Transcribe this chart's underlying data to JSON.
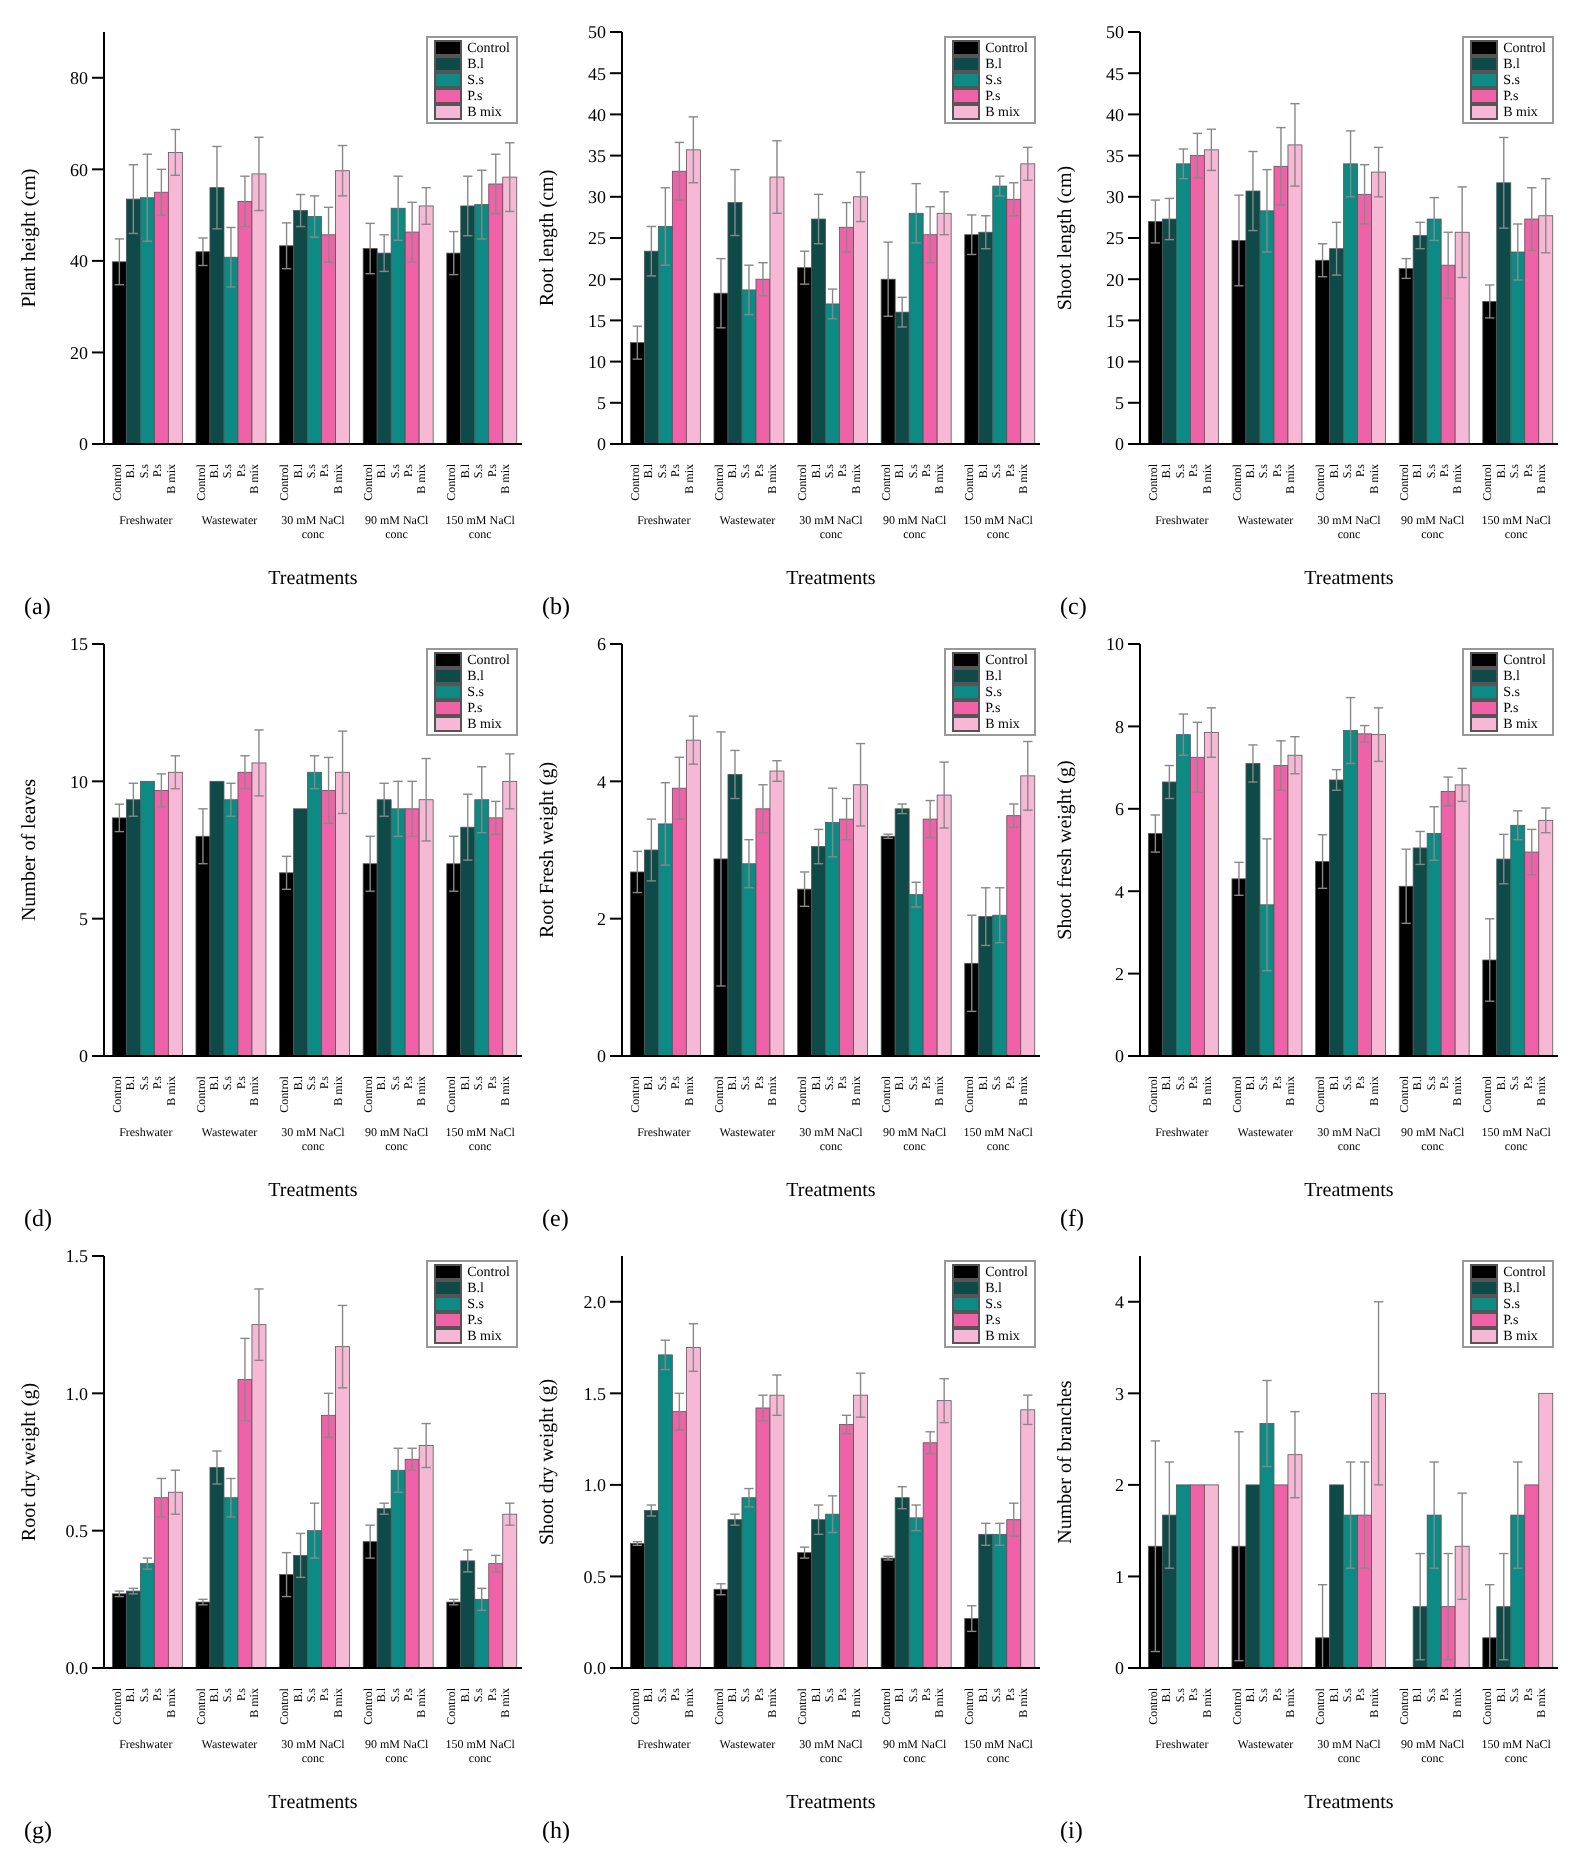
{
  "chart_data": [
    {
      "type": "bar",
      "ylabel": "Plant height (cm)",
      "xlabel": "Treatments",
      "annotations": [
        "(a)"
      ],
      "legend": "top right",
      "ylim": [
        0,
        90
      ],
      "yticks": [
        0,
        20,
        40,
        60,
        80
      ],
      "categories": [
        "Freshwater",
        "Wastewater",
        "30 mM NaCl conc",
        "90 mM NaCl conc",
        "150 mM NaCl conc"
      ],
      "series": [
        {
          "name": "Control",
          "color": "#000000",
          "values": [
            39.8,
            42,
            43.3,
            42.7,
            41.7
          ],
          "errors": [
            5,
            3,
            5,
            5.5,
            4.7
          ]
        },
        {
          "name": "B.l",
          "color": "#0d4a48",
          "values": [
            53.5,
            56,
            51,
            41.7,
            52
          ],
          "errors": [
            7.5,
            9,
            3.5,
            4,
            6.5
          ]
        },
        {
          "name": "S.s",
          "color": "#0e8a85",
          "values": [
            53.8,
            40.8,
            49.7,
            51.5,
            52.3
          ],
          "errors": [
            9.5,
            6.5,
            4.5,
            7,
            7.5
          ]
        },
        {
          "name": "P.s",
          "color": "#f062a8",
          "values": [
            55,
            53,
            45.7,
            46.3,
            56.8
          ],
          "errors": [
            5,
            5.5,
            6,
            6.5,
            6.5
          ]
        },
        {
          "name": "B mix",
          "color": "#f7b8d6",
          "values": [
            63.7,
            59,
            59.7,
            52,
            58.3
          ],
          "errors": [
            5,
            8,
            5.5,
            4,
            7.5
          ]
        }
      ]
    },
    {
      "type": "bar",
      "ylabel": "Root length (cm)",
      "xlabel": "Treatments",
      "annotations": [
        "(b)"
      ],
      "legend": "top right",
      "ylim": [
        0,
        50
      ],
      "yticks": [
        0,
        5,
        10,
        15,
        20,
        25,
        30,
        35,
        40,
        45,
        50
      ],
      "categories": [
        "Freshwater",
        "Wastewater",
        "30 mM NaCl conc",
        "90 mM NaCl conc",
        "150 mM NaCl conc"
      ],
      "series": [
        {
          "name": "Control",
          "color": "#000000",
          "values": [
            12.3,
            18.3,
            21.4,
            20,
            25.4
          ],
          "errors": [
            2,
            4.2,
            2,
            4.5,
            2.4
          ]
        },
        {
          "name": "B.l",
          "color": "#0d4a48",
          "values": [
            23.4,
            29.3,
            27.3,
            16,
            25.7
          ],
          "errors": [
            3,
            4,
            3,
            1.8,
            2
          ]
        },
        {
          "name": "S.s",
          "color": "#0e8a85",
          "values": [
            26.4,
            18.7,
            17,
            28,
            31.3
          ],
          "errors": [
            4.7,
            3,
            1.8,
            3.6,
            1.2
          ]
        },
        {
          "name": "P.s",
          "color": "#f062a8",
          "values": [
            33.1,
            20,
            26.3,
            25.4,
            29.7
          ],
          "errors": [
            3.5,
            2,
            3,
            3.4,
            2
          ]
        },
        {
          "name": "B mix",
          "color": "#f7b8d6",
          "values": [
            35.7,
            32.4,
            30,
            28,
            34
          ],
          "errors": [
            4,
            4.4,
            3,
            2.6,
            2
          ]
        }
      ]
    },
    {
      "type": "bar",
      "ylabel": "Shoot length (cm)",
      "xlabel": "Treatments",
      "annotations": [
        "(c)"
      ],
      "legend": "top right",
      "ylim": [
        0,
        50
      ],
      "yticks": [
        0,
        5,
        10,
        15,
        20,
        25,
        30,
        35,
        40,
        45,
        50
      ],
      "categories": [
        "Freshwater",
        "Wastewater",
        "30 mM NaCl conc",
        "90 mM NaCl conc",
        "150 mM NaCl conc"
      ],
      "series": [
        {
          "name": "Control",
          "color": "#000000",
          "values": [
            27,
            24.7,
            22.3,
            21.3,
            17.3
          ],
          "errors": [
            2.6,
            5.5,
            2,
            1.2,
            2
          ]
        },
        {
          "name": "B.l",
          "color": "#0d4a48",
          "values": [
            27.3,
            30.7,
            23.7,
            25.3,
            31.7
          ],
          "errors": [
            2.5,
            4.8,
            3.2,
            1.6,
            5.5
          ]
        },
        {
          "name": "S.s",
          "color": "#0e8a85",
          "values": [
            34,
            28.3,
            34,
            27.3,
            23.3
          ],
          "errors": [
            1.8,
            5,
            4,
            2.6,
            3.4
          ]
        },
        {
          "name": "P.s",
          "color": "#f062a8",
          "values": [
            35,
            33.7,
            30.3,
            21.7,
            27.3
          ],
          "errors": [
            2.7,
            4.7,
            3.6,
            4,
            3.8
          ]
        },
        {
          "name": "B mix",
          "color": "#f7b8d6",
          "values": [
            35.7,
            36.3,
            33,
            25.7,
            27.7
          ],
          "errors": [
            2.5,
            5,
            3,
            5.5,
            4.5
          ]
        }
      ]
    },
    {
      "type": "bar",
      "ylabel": "Number of leaves",
      "xlabel": "Treatments",
      "annotations": [
        "(d)"
      ],
      "legend": "top right",
      "ylim": [
        0,
        15
      ],
      "yticks": [
        0,
        5,
        10,
        15
      ],
      "categories": [
        "Freshwater",
        "Wastewater",
        "30 mM NaCl conc",
        "90 mM NaCl conc",
        "150 mM NaCl conc"
      ],
      "series": [
        {
          "name": "Control",
          "color": "#000000",
          "values": [
            8.67,
            8,
            6.67,
            7,
            7
          ],
          "errors": [
            0.5,
            1,
            0.6,
            1,
            1
          ]
        },
        {
          "name": "B.l",
          "color": "#0d4a48",
          "values": [
            9.33,
            10,
            9,
            9.33,
            8.33
          ],
          "errors": [
            0.6,
            null,
            null,
            0.6,
            1.2
          ]
        },
        {
          "name": "S.s",
          "color": "#0e8a85",
          "values": [
            10,
            9.33,
            10.33,
            9,
            9.33
          ],
          "errors": [
            null,
            0.6,
            0.6,
            1,
            1.2
          ]
        },
        {
          "name": "P.s",
          "color": "#f062a8",
          "values": [
            9.67,
            10.33,
            9.67,
            9,
            8.67
          ],
          "errors": [
            0.6,
            0.6,
            1.2,
            1,
            0.6
          ]
        },
        {
          "name": "B mix",
          "color": "#f7b8d6",
          "values": [
            10.33,
            10.67,
            10.33,
            9.33,
            10
          ],
          "errors": [
            0.6,
            1.2,
            1.5,
            1.5,
            1
          ]
        }
      ]
    },
    {
      "type": "bar",
      "ylabel": "Root Fresh weight (g)",
      "xlabel": "Treatments",
      "annotations": [
        "(e)"
      ],
      "legend": "top right",
      "ylim": [
        0,
        6
      ],
      "yticks": [
        0,
        2,
        4,
        6
      ],
      "categories": [
        "Freshwater",
        "Wastewater",
        "30 mM NaCl conc",
        "90 mM NaCl conc",
        "150 mM NaCl conc"
      ],
      "series": [
        {
          "name": "Control",
          "color": "#000000",
          "values": [
            2.68,
            2.87,
            2.43,
            3.2,
            1.35
          ],
          "errors": [
            0.3,
            1.85,
            0.25,
            0.03,
            0.7
          ]
        },
        {
          "name": "B.l",
          "color": "#0d4a48",
          "values": [
            3,
            4.1,
            3.05,
            3.6,
            2.03
          ],
          "errors": [
            0.45,
            0.35,
            0.25,
            0.07,
            0.42
          ]
        },
        {
          "name": "S.s",
          "color": "#0e8a85",
          "values": [
            3.38,
            2.8,
            3.4,
            2.35,
            2.05
          ],
          "errors": [
            0.6,
            0.35,
            0.5,
            0.18,
            0.4
          ]
        },
        {
          "name": "P.s",
          "color": "#f062a8",
          "values": [
            3.9,
            3.6,
            3.45,
            3.45,
            3.5
          ],
          "errors": [
            0.45,
            0.35,
            0.3,
            0.27,
            0.17
          ]
        },
        {
          "name": "B mix",
          "color": "#f7b8d6",
          "values": [
            4.6,
            4.15,
            3.95,
            3.8,
            4.08
          ],
          "errors": [
            0.35,
            0.15,
            0.6,
            0.48,
            0.5
          ]
        }
      ]
    },
    {
      "type": "bar",
      "ylabel": "Shoot fresh weight (g)",
      "xlabel": "Treatments",
      "annotations": [
        "(f)"
      ],
      "legend": "top right",
      "ylim": [
        0,
        10
      ],
      "yticks": [
        0,
        2,
        4,
        6,
        8,
        10
      ],
      "categories": [
        "Freshwater",
        "Wastewater",
        "30 mM NaCl conc",
        "90 mM NaCl conc",
        "150 mM NaCl conc"
      ],
      "series": [
        {
          "name": "Control",
          "color": "#000000",
          "values": [
            5.4,
            4.3,
            4.72,
            4.12,
            2.33
          ],
          "errors": [
            0.45,
            0.4,
            0.65,
            0.9,
            1
          ]
        },
        {
          "name": "B.l",
          "color": "#0d4a48",
          "values": [
            6.65,
            7.1,
            6.7,
            5.05,
            4.78
          ],
          "errors": [
            0.4,
            0.45,
            0.25,
            0.4,
            0.6
          ]
        },
        {
          "name": "S.s",
          "color": "#0e8a85",
          "values": [
            7.8,
            3.67,
            7.9,
            5.4,
            5.6
          ],
          "errors": [
            0.5,
            1.6,
            0.8,
            0.65,
            0.35
          ]
        },
        {
          "name": "P.s",
          "color": "#f062a8",
          "values": [
            7.25,
            7.05,
            7.82,
            6.42,
            4.95
          ],
          "errors": [
            0.85,
            0.6,
            0.2,
            0.35,
            0.55
          ]
        },
        {
          "name": "B mix",
          "color": "#f7b8d6",
          "values": [
            7.85,
            7.3,
            7.8,
            6.58,
            5.72
          ],
          "errors": [
            0.6,
            0.45,
            0.65,
            0.4,
            0.3
          ]
        }
      ]
    },
    {
      "type": "bar",
      "ylabel": "Root dry weight (g)",
      "xlabel": "Treatments",
      "annotations": [
        "(g)"
      ],
      "legend": "top right",
      "ylim": [
        0,
        1.5
      ],
      "yticks": [
        {
          "value": 0,
          "label": "0.0"
        },
        {
          "value": 0.5,
          "label": "0.5"
        },
        {
          "value": 1,
          "label": "1.0"
        },
        {
          "value": 1.5,
          "label": "1.5"
        }
      ],
      "categories": [
        "Freshwater",
        "Wastewater",
        "30 mM NaCl conc",
        "90 mM NaCl conc",
        "150 mM NaCl conc"
      ],
      "series": [
        {
          "name": "Control",
          "color": "#000000",
          "values": [
            0.27,
            0.24,
            0.34,
            0.46,
            0.24
          ],
          "errors": [
            0.01,
            0.01,
            0.08,
            0.06,
            0.01
          ]
        },
        {
          "name": "B.l",
          "color": "#0d4a48",
          "values": [
            0.28,
            0.73,
            0.41,
            0.58,
            0.39
          ],
          "errors": [
            0.01,
            0.06,
            0.08,
            0.02,
            0.04
          ]
        },
        {
          "name": "S.s",
          "color": "#0e8a85",
          "values": [
            0.38,
            0.62,
            0.5,
            0.72,
            0.25
          ],
          "errors": [
            0.02,
            0.07,
            0.1,
            0.08,
            0.04
          ]
        },
        {
          "name": "P.s",
          "color": "#f062a8",
          "values": [
            0.62,
            1.05,
            0.92,
            0.76,
            0.38
          ],
          "errors": [
            0.07,
            0.15,
            0.08,
            0.04,
            0.03
          ]
        },
        {
          "name": "B mix",
          "color": "#f7b8d6",
          "values": [
            0.64,
            1.25,
            1.17,
            0.81,
            0.56
          ],
          "errors": [
            0.08,
            0.13,
            0.15,
            0.08,
            0.04
          ]
        }
      ]
    },
    {
      "type": "bar",
      "ylabel": "Shoot dry weight (g)",
      "xlabel": "Treatments",
      "annotations": [
        "(h)"
      ],
      "legend": "top right",
      "ylim": [
        0,
        2.25
      ],
      "yticks": [
        {
          "value": 0,
          "label": "0.0"
        },
        {
          "value": 0.5,
          "label": "0.5"
        },
        {
          "value": 1,
          "label": "1.0"
        },
        {
          "value": 1.5,
          "label": "1.5"
        },
        {
          "value": 2,
          "label": "2.0"
        }
      ],
      "categories": [
        "Freshwater",
        "Wastewater",
        "30 mM NaCl conc",
        "90 mM NaCl conc",
        "150 mM NaCl conc"
      ],
      "series": [
        {
          "name": "Control",
          "color": "#000000",
          "values": [
            0.68,
            0.43,
            0.63,
            0.6,
            0.27
          ],
          "errors": [
            0.01,
            0.03,
            0.03,
            0.01,
            0.07
          ]
        },
        {
          "name": "B.l",
          "color": "#0d4a48",
          "values": [
            0.86,
            0.81,
            0.81,
            0.93,
            0.73
          ],
          "errors": [
            0.03,
            0.03,
            0.08,
            0.06,
            0.06
          ]
        },
        {
          "name": "S.s",
          "color": "#0e8a85",
          "values": [
            1.71,
            0.93,
            0.84,
            0.82,
            0.73
          ],
          "errors": [
            0.08,
            0.05,
            0.1,
            0.07,
            0.06
          ]
        },
        {
          "name": "P.s",
          "color": "#f062a8",
          "values": [
            1.4,
            1.42,
            1.33,
            1.23,
            0.81
          ],
          "errors": [
            0.1,
            0.07,
            0.05,
            0.06,
            0.09
          ]
        },
        {
          "name": "B mix",
          "color": "#f7b8d6",
          "values": [
            1.75,
            1.49,
            1.49,
            1.46,
            1.41
          ],
          "errors": [
            0.13,
            0.11,
            0.12,
            0.12,
            0.08
          ]
        }
      ]
    },
    {
      "type": "bar",
      "ylabel": "Number of branches",
      "xlabel": "Treatments",
      "annotations": [
        "(i)"
      ],
      "legend": "top right",
      "ylim": [
        0,
        4.5
      ],
      "yticks": [
        0,
        1,
        2,
        3,
        4
      ],
      "categories": [
        "Freshwater",
        "Wastewater",
        "30 mM NaCl conc",
        "90 mM NaCl conc",
        "150 mM NaCl conc"
      ],
      "series": [
        {
          "name": "Control",
          "color": "#000000",
          "values": [
            1.33,
            1.33,
            0.33,
            0,
            0.33
          ],
          "errors": [
            1.15,
            1.25,
            [
              0,
              0.91
            ],
            null,
            [
              0,
              0.91
            ]
          ]
        },
        {
          "name": "B.l",
          "color": "#0d4a48",
          "values": [
            1.67,
            2,
            2,
            0.67,
            0.67
          ],
          "errors": [
            0.58,
            null,
            null,
            0.58,
            0.58
          ]
        },
        {
          "name": "S.s",
          "color": "#0e8a85",
          "values": [
            2,
            2.67,
            1.67,
            1.67,
            1.67
          ],
          "errors": [
            null,
            0.47,
            0.58,
            0.58,
            0.58
          ]
        },
        {
          "name": "P.s",
          "color": "#f062a8",
          "values": [
            2,
            2,
            1.67,
            0.67,
            2
          ],
          "errors": [
            null,
            null,
            0.58,
            0.58,
            null
          ]
        },
        {
          "name": "B mix",
          "color": "#f7b8d6",
          "values": [
            2,
            2.33,
            3,
            1.33,
            3
          ],
          "errors": [
            null,
            0.47,
            1,
            0.58,
            null
          ]
        }
      ]
    }
  ]
}
